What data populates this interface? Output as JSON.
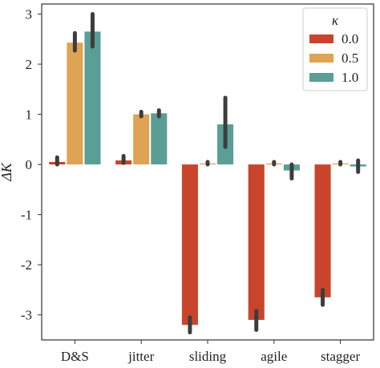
{
  "chart_data": {
    "type": "bar",
    "categories": [
      "D&S",
      "jitter",
      "sliding",
      "agile",
      "stagger"
    ],
    "ylabel": "ΔK",
    "ylim": [
      -3.5,
      3.2
    ],
    "yticks": [
      -3,
      -2,
      -1,
      0,
      1,
      2,
      3
    ],
    "grid": false,
    "legend": {
      "title": "κ",
      "placement": "top-right"
    },
    "series": [
      {
        "name": "0.0",
        "color": "#c8452c",
        "values": [
          0.05,
          0.08,
          -3.2,
          -3.1,
          -2.65
        ],
        "err_low": [
          0.0,
          0.03,
          -3.35,
          -3.3,
          -2.8
        ],
        "err_high": [
          0.14,
          0.17,
          -3.05,
          -2.92,
          -2.5
        ]
      },
      {
        "name": "0.5",
        "color": "#dfa354",
        "values": [
          2.43,
          1.0,
          0.02,
          0.02,
          0.02
        ],
        "err_low": [
          2.27,
          0.96,
          0.0,
          0.0,
          0.0
        ],
        "err_high": [
          2.62,
          1.05,
          0.05,
          0.05,
          0.05
        ]
      },
      {
        "name": "1.0",
        "color": "#5a9e96",
        "values": [
          2.65,
          1.02,
          0.8,
          -0.12,
          -0.04
        ],
        "err_low": [
          2.35,
          0.96,
          0.35,
          -0.28,
          -0.15
        ],
        "err_high": [
          3.0,
          1.08,
          1.33,
          0.0,
          0.08
        ]
      }
    ]
  }
}
